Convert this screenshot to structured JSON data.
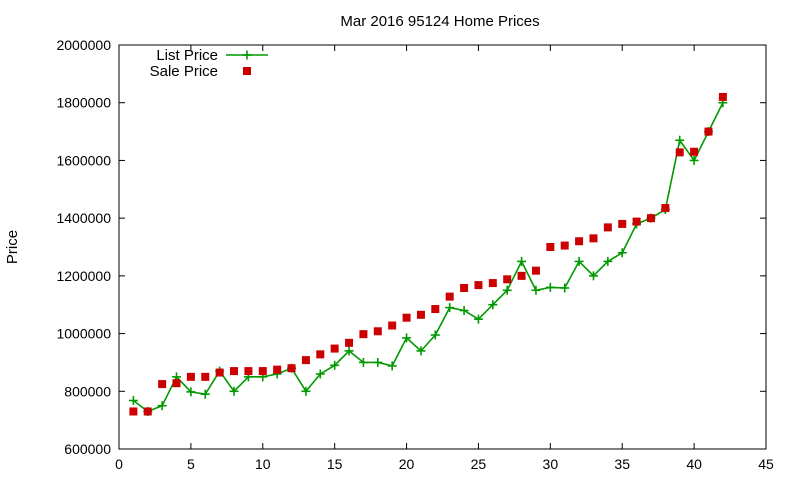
{
  "chart_data": {
    "type": "scatter",
    "title": "Mar 2016 95124 Home Prices",
    "xlabel": "",
    "ylabel": "Price",
    "xlim": [
      0,
      45
    ],
    "ylim": [
      600000,
      2000000
    ],
    "xticks": [
      "0",
      "5",
      "10",
      "15",
      "20",
      "25",
      "30",
      "35",
      "40",
      "45"
    ],
    "yticks": [
      "600000",
      "800000",
      "1000000",
      "1200000",
      "1400000",
      "1600000",
      "1800000",
      "2000000"
    ],
    "grid": false,
    "legend_position": "top-left",
    "series": [
      {
        "name": "List Price",
        "mark": "line-plus",
        "color": "#009900",
        "x": [
          1,
          2,
          3,
          4,
          5,
          6,
          7,
          8,
          9,
          10,
          11,
          12,
          13,
          14,
          15,
          16,
          17,
          18,
          19,
          20,
          21,
          22,
          23,
          24,
          25,
          26,
          27,
          28,
          29,
          30,
          31,
          32,
          33,
          34,
          35,
          36,
          37,
          38,
          39,
          40,
          41,
          42
        ],
        "y": [
          768000,
          730000,
          750000,
          850000,
          798000,
          790000,
          870000,
          800000,
          850000,
          850000,
          860000,
          880000,
          800000,
          860000,
          890000,
          940000,
          900000,
          900000,
          888000,
          985000,
          940000,
          995000,
          1090000,
          1080000,
          1050000,
          1100000,
          1150000,
          1250000,
          1150000,
          1160000,
          1158000,
          1250000,
          1200000,
          1250000,
          1280000,
          1380000,
          1400000,
          1430000,
          1670000,
          1600000,
          1700000,
          1800000
        ]
      },
      {
        "name": "Sale Price",
        "mark": "square",
        "color": "#cc0000",
        "x": [
          1,
          2,
          3,
          4,
          5,
          6,
          7,
          8,
          9,
          10,
          11,
          12,
          13,
          14,
          15,
          16,
          17,
          18,
          19,
          20,
          21,
          22,
          23,
          24,
          25,
          26,
          27,
          28,
          29,
          30,
          31,
          32,
          33,
          34,
          35,
          36,
          37,
          38,
          39,
          40,
          41,
          42
        ],
        "y": [
          730000,
          730000,
          825000,
          828000,
          850000,
          850000,
          865000,
          870000,
          870000,
          870000,
          875000,
          880000,
          908000,
          928000,
          948000,
          968000,
          998000,
          1008000,
          1028000,
          1055000,
          1065000,
          1085000,
          1128000,
          1158000,
          1168000,
          1175000,
          1188000,
          1200000,
          1218000,
          1300000,
          1305000,
          1320000,
          1330000,
          1368000,
          1380000,
          1388000,
          1400000,
          1435000,
          1628000,
          1630000,
          1700000,
          1820000
        ]
      }
    ]
  }
}
